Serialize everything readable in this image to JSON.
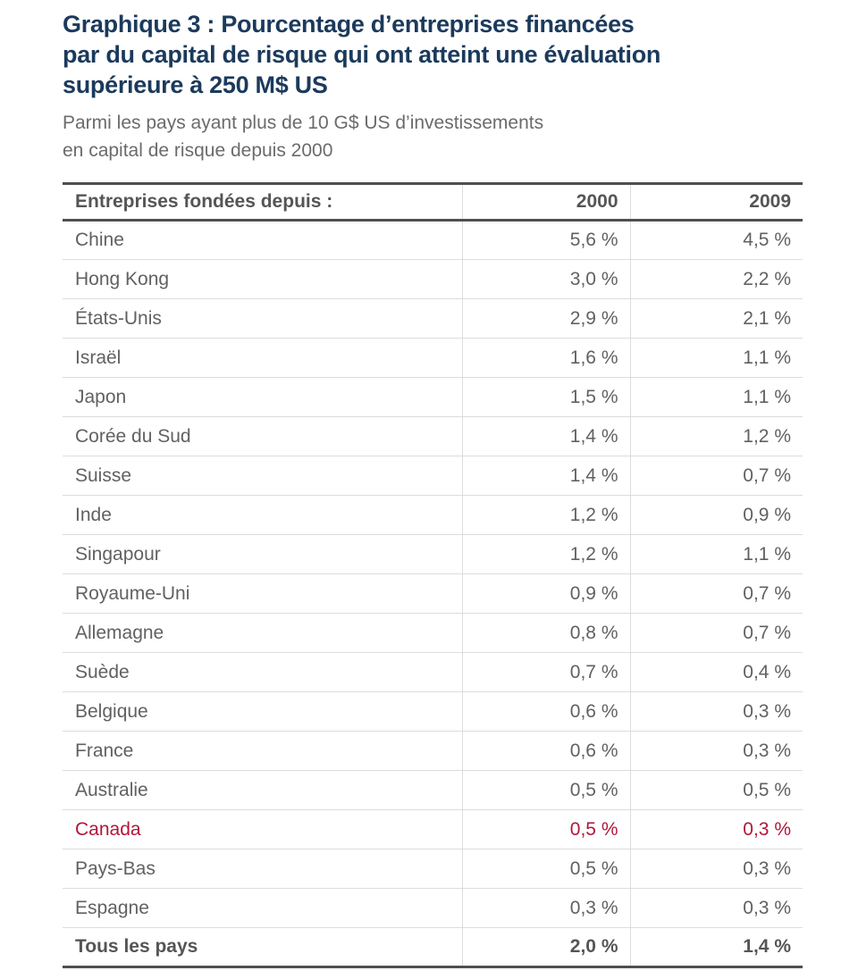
{
  "colors": {
    "title_navy": "#1b3a5c",
    "body_gray": "#616161",
    "highlight_red": "#b0173a",
    "thick_border": "#4f4f4f",
    "thin_border": "#dcdcdc"
  },
  "header": {
    "title": {
      "line1": "Graphique 3 : Pourcentage d’entreprises financées",
      "line2": "par du capital de risque qui ont atteint une évaluation",
      "line3": "supérieure à 250 M$ US"
    },
    "subtitle": {
      "line1": "Parmi les pays ayant plus de 10 G$ US d’investissements",
      "line2": "en capital de risque depuis 2000"
    }
  },
  "table": {
    "header": {
      "label": "Entreprises fondées depuis :",
      "col2000": "2000",
      "col2009": "2009"
    },
    "rows": [
      {
        "country": "Chine",
        "y2000": "5,6 %",
        "y2009": "4,5 %"
      },
      {
        "country": "Hong Kong",
        "y2000": "3,0 %",
        "y2009": "2,2 %"
      },
      {
        "country": "États-Unis",
        "y2000": "2,9 %",
        "y2009": "2,1 %"
      },
      {
        "country": "Israël",
        "y2000": "1,6 %",
        "y2009": "1,1 %"
      },
      {
        "country": "Japon",
        "y2000": "1,5 %",
        "y2009": "1,1 %"
      },
      {
        "country": "Corée du Sud",
        "y2000": "1,4 %",
        "y2009": "1,2 %"
      },
      {
        "country": "Suisse",
        "y2000": "1,4 %",
        "y2009": "0,7 %"
      },
      {
        "country": "Inde",
        "y2000": "1,2 %",
        "y2009": "0,9 %"
      },
      {
        "country": "Singapour",
        "y2000": "1,2 %",
        "y2009": "1,1 %"
      },
      {
        "country": "Royaume-Uni",
        "y2000": "0,9 %",
        "y2009": "0,7 %"
      },
      {
        "country": "Allemagne",
        "y2000": "0,8 %",
        "y2009": "0,7 %"
      },
      {
        "country": "Suède",
        "y2000": "0,7 %",
        "y2009": "0,4 %"
      },
      {
        "country": "Belgique",
        "y2000": "0,6 %",
        "y2009": "0,3 %"
      },
      {
        "country": "France",
        "y2000": "0,6 %",
        "y2009": "0,3 %"
      },
      {
        "country": "Australie",
        "y2000": "0,5 %",
        "y2009": "0,5 %"
      },
      {
        "country": "Canada",
        "y2000": "0,5 %",
        "y2009": "0,3 %"
      },
      {
        "country": "Pays-Bas",
        "y2000": "0,5 %",
        "y2009": "0,3 %"
      },
      {
        "country": "Espagne",
        "y2000": "0,3 %",
        "y2009": "0,3 %"
      },
      {
        "country": "Tous les pays",
        "y2000": "2,0 %",
        "y2009": "1,4 %"
      }
    ]
  },
  "chart_data": {
    "type": "table",
    "title": "Graphique 3 : Pourcentage d’entreprises financées par du capital de risque qui ont atteint une évaluation supérieure à 250 M$ US",
    "subtitle": "Parmi les pays ayant plus de 10 G$ US d’investissements en capital de risque depuis 2000",
    "row_header": "Entreprises fondées depuis :",
    "categories": [
      "Chine",
      "Hong Kong",
      "États-Unis",
      "Israël",
      "Japon",
      "Corée du Sud",
      "Suisse",
      "Inde",
      "Singapour",
      "Royaume-Uni",
      "Allemagne",
      "Suède",
      "Belgique",
      "France",
      "Australie",
      "Canada",
      "Pays-Bas",
      "Espagne",
      "Tous les pays"
    ],
    "series": [
      {
        "name": "2000",
        "values": [
          5.6,
          3.0,
          2.9,
          1.6,
          1.5,
          1.4,
          1.4,
          1.2,
          1.2,
          0.9,
          0.8,
          0.7,
          0.6,
          0.6,
          0.5,
          0.5,
          0.5,
          0.3,
          2.0
        ]
      },
      {
        "name": "2009",
        "values": [
          4.5,
          2.2,
          2.1,
          1.1,
          1.1,
          1.2,
          0.7,
          0.9,
          1.1,
          0.7,
          0.7,
          0.4,
          0.3,
          0.3,
          0.5,
          0.3,
          0.3,
          0.3,
          1.4
        ]
      }
    ],
    "unit": "%",
    "decimal_separator": ",",
    "highlighted_row": "Canada",
    "highlight_color": "#b0173a",
    "total_row": "Tous les pays"
  }
}
